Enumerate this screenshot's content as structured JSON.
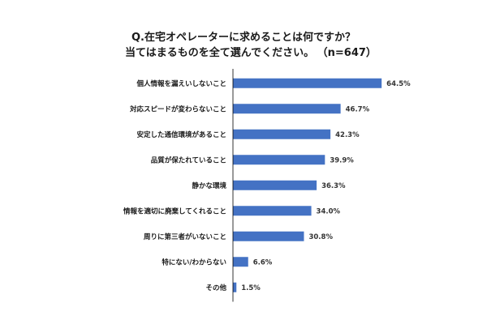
{
  "colors": {
    "bar": "#4472c4",
    "axis": "#000000"
  },
  "chart_data": {
    "type": "bar",
    "orientation": "horizontal",
    "title_line1": "Q.在宅オペレーターに求めることは何ですか？",
    "title_line2": "当てはまるものを全て選んでください。",
    "sample_size": "（n=647）",
    "categories": [
      "個人情報を漏えいしないこと",
      "対応スピードが変わらないこと",
      "安定した通信環境があること",
      "品質が保たれていること",
      "静かな環境",
      "情報を適切に廃棄してくれること",
      "周りに第三者がいないこと",
      "特にない/わからない",
      "その他"
    ],
    "values": [
      64.5,
      46.7,
      42.3,
      39.9,
      36.3,
      34.0,
      30.8,
      6.6,
      1.5
    ],
    "value_labels": [
      "64.5%",
      "46.7%",
      "42.3%",
      "39.9%",
      "36.3%",
      "34.0%",
      "30.8%",
      "6.6%",
      "1.5%"
    ],
    "unit": "%",
    "xlim": [
      0,
      100
    ],
    "grid": false,
    "legend": false
  }
}
